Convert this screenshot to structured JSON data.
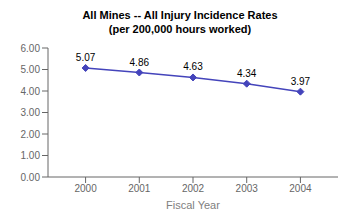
{
  "chart_data": {
    "type": "line",
    "title": "All Mines -- All Injury Incidence Rates",
    "subtitle": "(per 200,000 hours worked)",
    "x_label": "Fiscal Year",
    "x": [
      2000,
      2001,
      2002,
      2003,
      2004
    ],
    "series": [
      {
        "name": "All Injury Incidence Rate",
        "color": "#4444bb",
        "marker": "diamond",
        "values": [
          5.07,
          4.86,
          4.63,
          4.34,
          3.97
        ]
      }
    ],
    "xlim": [
      1999.3,
      2004.7
    ],
    "xticks": [
      2000,
      2001,
      2002,
      2003,
      2004
    ],
    "ylim": [
      0.0,
      6.0
    ],
    "yticks": [
      {
        "value": 0.0,
        "label": "0.00"
      },
      {
        "value": 1.0,
        "label": "1.00"
      },
      {
        "value": 2.0,
        "label": "2.00"
      },
      {
        "value": 3.0,
        "label": "3.00"
      },
      {
        "value": 4.0,
        "label": "4.00"
      },
      {
        "value": 5.0,
        "label": "5.00"
      },
      {
        "value": 6.0,
        "label": "6.00"
      }
    ],
    "grid": false,
    "legend": false,
    "data_labels": true
  }
}
